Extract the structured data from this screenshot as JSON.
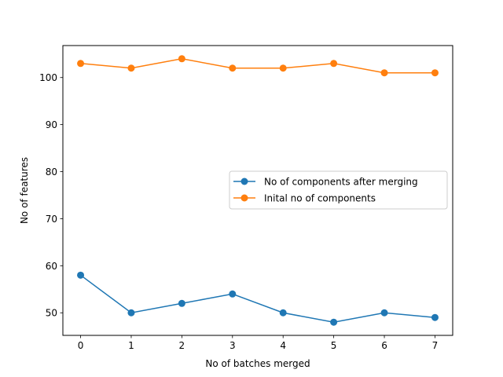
{
  "chart_data": {
    "type": "line",
    "title": "",
    "xlabel": "No of batches merged",
    "ylabel": "No of features",
    "x": [
      0,
      1,
      2,
      3,
      4,
      5,
      6,
      7
    ],
    "xticks": [
      "0",
      "1",
      "2",
      "3",
      "4",
      "5",
      "6",
      "7"
    ],
    "yticks": [
      "50",
      "60",
      "70",
      "80",
      "90",
      "100"
    ],
    "xlim": [
      -0.35,
      7.35
    ],
    "ylim": [
      45.2,
      106.8
    ],
    "grid": false,
    "legend_position": "center-right",
    "series": [
      {
        "name": "No of components after merging",
        "color": "#1f77b4",
        "marker": "circle",
        "values": [
          58,
          50,
          52,
          54,
          50,
          48,
          50,
          49
        ]
      },
      {
        "name": "Inital no of components",
        "color": "#ff7f0e",
        "marker": "circle",
        "values": [
          103,
          102,
          104,
          102,
          102,
          103,
          101,
          101
        ]
      }
    ]
  }
}
